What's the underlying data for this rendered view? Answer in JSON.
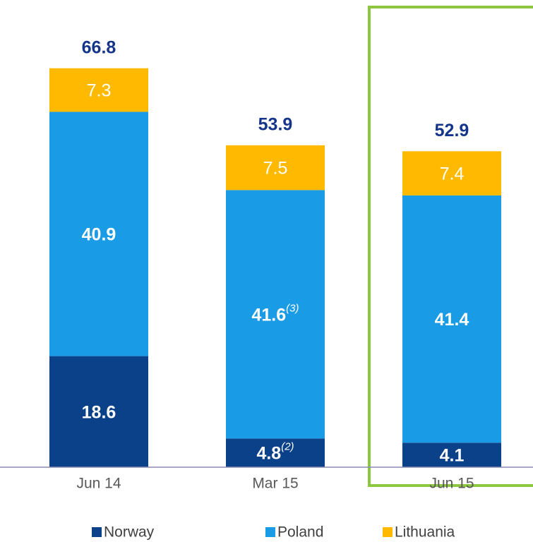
{
  "chart_data": {
    "type": "stacked-bar",
    "categories": [
      "Jun 14",
      "Mar 15",
      "Jun 15"
    ],
    "series": [
      {
        "name": "Norway",
        "color": "#0b4189",
        "values": [
          18.6,
          4.8,
          4.1
        ],
        "notes": [
          null,
          "(2)",
          null
        ]
      },
      {
        "name": "Poland",
        "color": "#1a9be6",
        "values": [
          40.9,
          41.6,
          41.4
        ],
        "notes": [
          null,
          "(3)",
          null
        ]
      },
      {
        "name": "Lithuania",
        "color": "#ffba00",
        "values": [
          7.3,
          7.5,
          7.4
        ],
        "notes": [
          null,
          null,
          null
        ]
      }
    ],
    "totals": [
      66.8,
      53.9,
      52.9
    ],
    "ylim": [
      0,
      73.5
    ],
    "highlight": 2
  }
}
